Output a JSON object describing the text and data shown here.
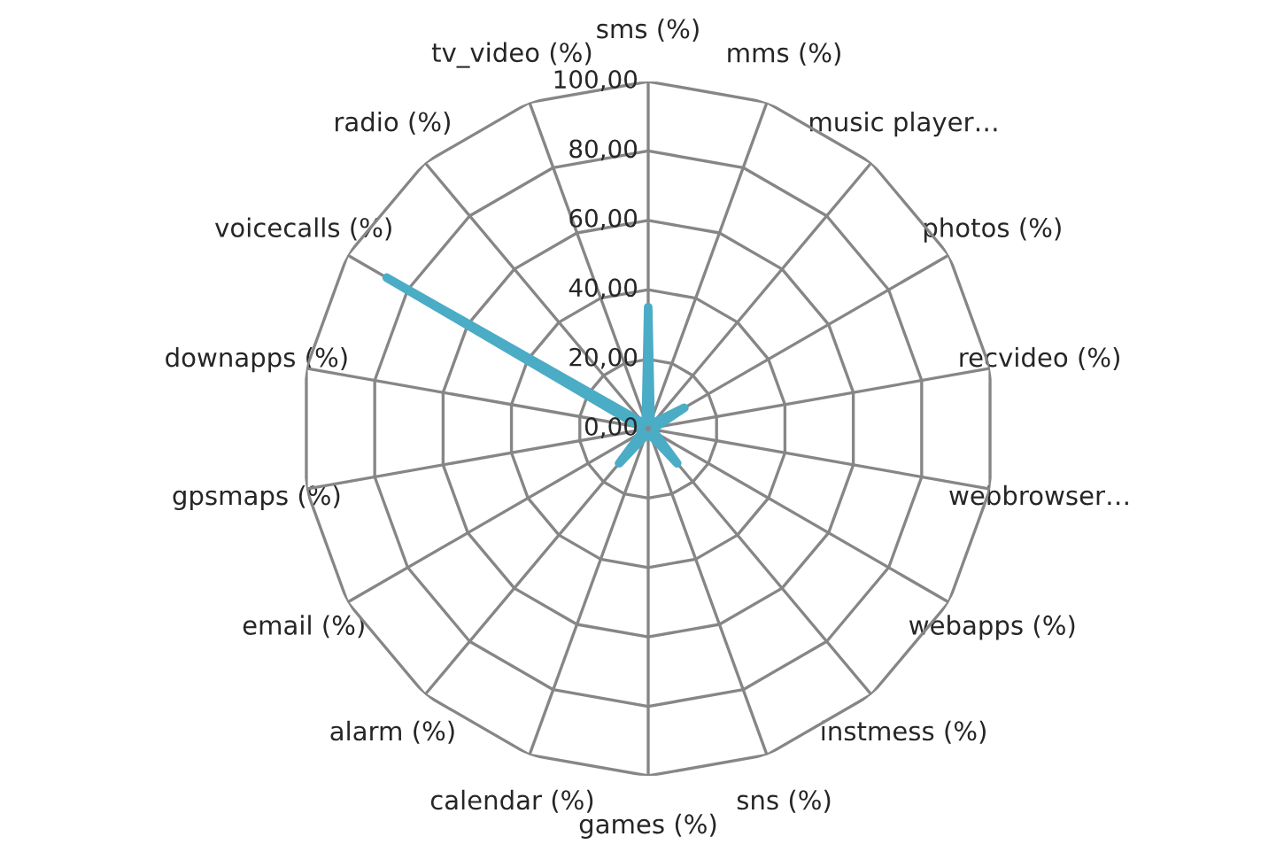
{
  "chart_data": {
    "type": "radar",
    "categories": [
      "sms (%)",
      "mms (%)",
      "music player…",
      "photos (%)",
      "recvideo (%)",
      "webbrowser…",
      "webapps (%)",
      "instmess (%)",
      "sns (%)",
      "games (%)",
      "calendar (%)",
      "alarm (%)",
      "email (%)",
      "gpsmaps (%)",
      "downapps (%)",
      "voicecalls (%)",
      "radio (%)",
      "tv_video (%)"
    ],
    "series": [
      {
        "color": "#4bacc6",
        "values": [
          35,
          2,
          2,
          12,
          2,
          2,
          2,
          13,
          2,
          2,
          2,
          13,
          2,
          2,
          2,
          87,
          2,
          2
        ]
      }
    ],
    "ylim": [
      0,
      100
    ],
    "yticks": [
      {
        "value": 0,
        "label": "0,00"
      },
      {
        "value": 20,
        "label": "20,00"
      },
      {
        "value": 40,
        "label": "40,00"
      },
      {
        "value": 60,
        "label": "60,00"
      },
      {
        "value": 80,
        "label": "80,00"
      },
      {
        "value": 100,
        "label": "100,00"
      }
    ],
    "grid": true
  }
}
